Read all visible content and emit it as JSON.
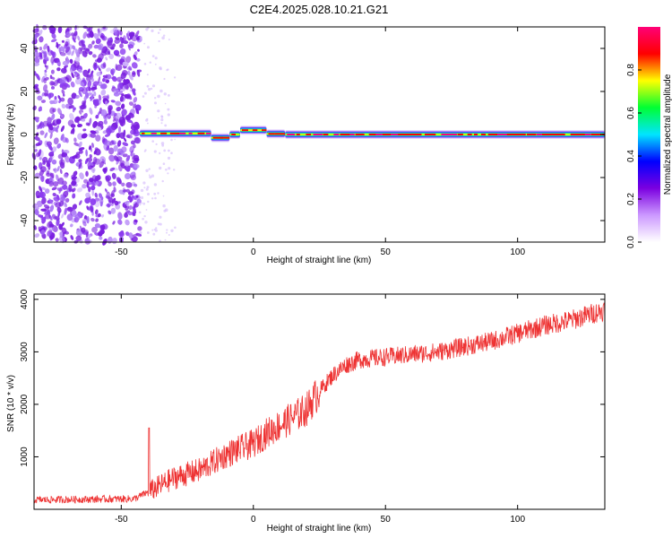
{
  "title": "C2E4.2025.028.10.21.G21",
  "chart_data": [
    {
      "type": "heatmap",
      "xlabel": "Height of straight line (km)",
      "ylabel": "Frequency (Hz)",
      "xlim": [
        -83,
        133
      ],
      "ylim": [
        -50,
        50
      ],
      "xticks": [
        -50,
        0,
        50,
        100
      ],
      "yticks": [
        -40,
        -20,
        0,
        20,
        40
      ],
      "colorbar": {
        "label": "Normalized spectral amplitude",
        "range": [
          0.0,
          1.0
        ],
        "ticks": [
          0.0,
          0.2,
          0.4,
          0.6,
          0.8
        ],
        "colors": [
          "#ffffff",
          "#cc99ff",
          "#7b00e0",
          "#0000ff",
          "#00e5ff",
          "#00ff33",
          "#ffff00",
          "#ff0000",
          "#ff0077"
        ]
      },
      "noise_region_x": [
        -83,
        -43
      ],
      "signal": [
        {
          "x": [
            -43,
            -16
          ],
          "freq": 0.5
        },
        {
          "x": [
            -16,
            -9
          ],
          "freq": -1.5
        },
        {
          "x": [
            -9,
            -5
          ],
          "freq": 0.0
        },
        {
          "x": [
            -5,
            5
          ],
          "freq": 2.0
        },
        {
          "x": [
            5,
            12
          ],
          "freq": 0.3
        },
        {
          "x": [
            12,
            133
          ],
          "freq": 0.0
        }
      ]
    },
    {
      "type": "line",
      "xlabel": "Height of straight line (km)",
      "ylabel": "SNR (10 * v/v)",
      "xlim": [
        -83,
        133
      ],
      "ylim": [
        0,
        4100
      ],
      "xticks": [
        -50,
        0,
        50,
        100
      ],
      "yticks": [
        1000,
        2000,
        3000,
        4000
      ],
      "color": "#ee3333",
      "trend": {
        "x": [
          -83,
          -45,
          -39,
          -30,
          -20,
          -10,
          0,
          5,
          10,
          15,
          20,
          25,
          30,
          35,
          40,
          50,
          60,
          70,
          80,
          90,
          100,
          110,
          120,
          133
        ],
        "y": [
          180,
          200,
          350,
          600,
          750,
          1050,
          1250,
          1450,
          1600,
          1750,
          1900,
          2250,
          2550,
          2750,
          2850,
          2900,
          2950,
          3000,
          3100,
          3200,
          3350,
          3500,
          3600,
          3800
        ]
      }
    }
  ]
}
